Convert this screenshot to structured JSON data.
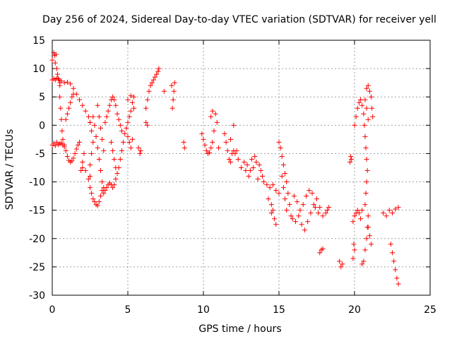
{
  "chart_data": {
    "type": "scatter",
    "title": "Day 256 of 2024, Sidereal Day-to-day VTEC variation (SDTVAR) for receiver yell",
    "xlabel": "GPS time / hours",
    "ylabel": "SDTVAR / TECUs",
    "xlim": [
      0,
      25
    ],
    "ylim": [
      -30,
      15
    ],
    "xticks": [
      "0",
      "5",
      "10",
      "15",
      "20",
      "25"
    ],
    "yticks": [
      "15",
      "10",
      "5",
      "0",
      "-5",
      "-10",
      "-15",
      "-20",
      "-25",
      "-30"
    ],
    "grid": true,
    "marker": "+",
    "color": "#ff0000",
    "series": [
      {
        "name": "SDTVAR",
        "points": [
          [
            0.0,
            11.5
          ],
          [
            0.1,
            12.8
          ],
          [
            0.15,
            12.3
          ],
          [
            0.2,
            11.0
          ],
          [
            0.25,
            12.5
          ],
          [
            0.3,
            10.0
          ],
          [
            0.35,
            9.0
          ],
          [
            0.4,
            8.2
          ],
          [
            0.5,
            7.5
          ],
          [
            0.0,
            8.0
          ],
          [
            0.1,
            8.2
          ],
          [
            0.2,
            8.0
          ],
          [
            0.3,
            8.3
          ],
          [
            0.45,
            8.0
          ],
          [
            0.6,
            7.8
          ],
          [
            0.8,
            7.5
          ],
          [
            1.0,
            7.6
          ],
          [
            1.2,
            7.3
          ],
          [
            1.4,
            6.5
          ],
          [
            1.6,
            5.5
          ],
          [
            1.8,
            4.5
          ],
          [
            2.0,
            3.5
          ],
          [
            2.2,
            2.5
          ],
          [
            2.4,
            1.5
          ],
          [
            2.5,
            0.5
          ],
          [
            0.0,
            -3.5
          ],
          [
            0.1,
            -3.2
          ],
          [
            0.2,
            -3.6
          ],
          [
            0.3,
            -3.0
          ],
          [
            0.4,
            -3.4
          ],
          [
            0.5,
            -3.3
          ],
          [
            0.6,
            -3.1
          ],
          [
            0.7,
            -3.5
          ],
          [
            0.8,
            -3.8
          ],
          [
            0.5,
            7.0
          ],
          [
            0.5,
            5.0
          ],
          [
            0.55,
            3.0
          ],
          [
            0.6,
            1.0
          ],
          [
            0.65,
            -1.0
          ],
          [
            0.7,
            -2.5
          ],
          [
            0.8,
            -3.5
          ],
          [
            0.9,
            -4.5
          ],
          [
            1.0,
            -5.5
          ],
          [
            1.1,
            -6.2
          ],
          [
            1.2,
            -6.5
          ],
          [
            1.3,
            -6.3
          ],
          [
            1.4,
            -5.8
          ],
          [
            1.5,
            -5.0
          ],
          [
            1.6,
            -4.2
          ],
          [
            1.7,
            -3.5
          ],
          [
            1.8,
            -3.0
          ],
          [
            0.9,
            1.0
          ],
          [
            1.0,
            2.0
          ],
          [
            1.1,
            3.0
          ],
          [
            1.2,
            4.0
          ],
          [
            1.3,
            5.0
          ],
          [
            1.4,
            5.5
          ],
          [
            1.9,
            -8.0
          ],
          [
            2.0,
            -6.5
          ],
          [
            2.1,
            -5.0
          ],
          [
            2.0,
            -7.5
          ],
          [
            2.2,
            -8.0
          ],
          [
            2.4,
            -9.5
          ],
          [
            2.5,
            -11.0
          ],
          [
            2.6,
            -12.0
          ],
          [
            2.7,
            -13.0
          ],
          [
            2.8,
            -13.5
          ],
          [
            2.9,
            -14.0
          ],
          [
            3.0,
            -14.2
          ],
          [
            3.1,
            -13.5
          ],
          [
            3.2,
            -12.5
          ],
          [
            3.3,
            -11.5
          ],
          [
            2.5,
            -9.0
          ],
          [
            2.5,
            -7.0
          ],
          [
            2.6,
            -5.0
          ],
          [
            2.7,
            -3.0
          ],
          [
            2.6,
            -1.0
          ],
          [
            2.5,
            0.5
          ],
          [
            2.7,
            1.5
          ],
          [
            2.8,
            0.0
          ],
          [
            2.9,
            -2.0
          ],
          [
            3.0,
            -4.0
          ],
          [
            3.1,
            -6.0
          ],
          [
            3.2,
            -8.0
          ],
          [
            3.3,
            -10.0
          ],
          [
            3.4,
            -11.0
          ],
          [
            3.0,
            3.5
          ],
          [
            3.1,
            1.5
          ],
          [
            3.2,
            -0.5
          ],
          [
            3.3,
            -2.5
          ],
          [
            3.4,
            -4.5
          ],
          [
            3.4,
            -12.0
          ],
          [
            3.5,
            -11.5
          ],
          [
            3.6,
            -11.0
          ],
          [
            3.7,
            -10.5
          ],
          [
            3.8,
            -10.2
          ],
          [
            3.9,
            -10.5
          ],
          [
            4.0,
            -11.0
          ],
          [
            4.1,
            -10.5
          ],
          [
            4.2,
            -9.5
          ],
          [
            4.3,
            -8.5
          ],
          [
            3.5,
            0.5
          ],
          [
            3.6,
            1.5
          ],
          [
            3.7,
            2.5
          ],
          [
            3.8,
            3.5
          ],
          [
            3.9,
            4.5
          ],
          [
            4.0,
            5.0
          ],
          [
            4.1,
            4.5
          ],
          [
            4.2,
            3.5
          ],
          [
            4.3,
            2.0
          ],
          [
            4.4,
            1.0
          ],
          [
            4.5,
            0.0
          ],
          [
            4.6,
            -1.0
          ],
          [
            3.9,
            -3.0
          ],
          [
            4.0,
            -4.5
          ],
          [
            4.1,
            -6.0
          ],
          [
            4.2,
            -7.5
          ],
          [
            4.4,
            -7.5
          ],
          [
            4.5,
            -6.0
          ],
          [
            4.6,
            -4.5
          ],
          [
            4.7,
            -3.0
          ],
          [
            4.8,
            -1.5
          ],
          [
            4.9,
            -0.5
          ],
          [
            5.0,
            0.5
          ],
          [
            5.1,
            1.5
          ],
          [
            5.2,
            2.5
          ],
          [
            5.3,
            4.0
          ],
          [
            5.4,
            5.0
          ],
          [
            5.0,
            -2.0
          ],
          [
            5.1,
            -3.0
          ],
          [
            5.2,
            -4.0
          ],
          [
            5.3,
            -2.5
          ],
          [
            5.0,
            4.5
          ],
          [
            5.2,
            5.2
          ],
          [
            5.4,
            3.0
          ],
          [
            5.7,
            -4.0
          ],
          [
            5.8,
            -5.0
          ],
          [
            5.85,
            -4.5
          ],
          [
            6.2,
            0.5
          ],
          [
            6.3,
            0.0
          ],
          [
            6.2,
            3.0
          ],
          [
            6.3,
            4.5
          ],
          [
            6.4,
            6.0
          ],
          [
            6.5,
            7.0
          ],
          [
            6.6,
            7.5
          ],
          [
            6.7,
            8.0
          ],
          [
            6.8,
            8.5
          ],
          [
            6.9,
            9.0
          ],
          [
            7.0,
            9.5
          ],
          [
            7.05,
            10.0
          ],
          [
            7.4,
            6.0
          ],
          [
            7.95,
            3.0
          ],
          [
            8.0,
            4.5
          ],
          [
            8.05,
            6.0
          ],
          [
            8.1,
            7.5
          ],
          [
            7.9,
            7.0
          ],
          [
            8.7,
            -3.0
          ],
          [
            8.75,
            -4.0
          ],
          [
            9.9,
            -1.5
          ],
          [
            10.0,
            -2.5
          ],
          [
            10.1,
            -3.5
          ],
          [
            10.2,
            -4.5
          ],
          [
            10.3,
            -5.0
          ],
          [
            10.4,
            -4.8
          ],
          [
            10.5,
            -4.0
          ],
          [
            10.6,
            -3.0
          ],
          [
            10.5,
            1.5
          ],
          [
            10.6,
            2.5
          ],
          [
            10.8,
            2.0
          ],
          [
            10.9,
            0.5
          ],
          [
            10.7,
            -1.0
          ],
          [
            11.0,
            -4.0
          ],
          [
            11.4,
            -1.5
          ],
          [
            11.5,
            -3.0
          ],
          [
            11.6,
            -4.5
          ],
          [
            11.7,
            -6.0
          ],
          [
            11.8,
            -6.5
          ],
          [
            11.9,
            -5.0
          ],
          [
            12.0,
            -4.5
          ],
          [
            12.1,
            -5.0
          ],
          [
            12.2,
            -4.5
          ],
          [
            11.8,
            -2.5
          ],
          [
            12.0,
            0.0
          ],
          [
            12.3,
            -6.0
          ],
          [
            12.5,
            -7.5
          ],
          [
            12.7,
            -6.5
          ],
          [
            12.9,
            -7.0
          ],
          [
            13.1,
            -8.0
          ],
          [
            13.3,
            -7.5
          ],
          [
            13.5,
            -6.5
          ],
          [
            13.7,
            -7.0
          ],
          [
            13.9,
            -9.0
          ],
          [
            14.0,
            -10.0
          ],
          [
            14.2,
            -10.5
          ],
          [
            14.4,
            -11.0
          ],
          [
            14.6,
            -10.5
          ],
          [
            14.8,
            -11.5
          ],
          [
            15.0,
            -12.0
          ],
          [
            12.8,
            -8.0
          ],
          [
            13.0,
            -9.0
          ],
          [
            13.2,
            -6.0
          ],
          [
            13.4,
            -5.5
          ],
          [
            13.6,
            -9.5
          ],
          [
            13.8,
            -8.0
          ],
          [
            14.3,
            -13.0
          ],
          [
            14.5,
            -14.0
          ],
          [
            14.6,
            -15.0
          ],
          [
            14.7,
            -16.5
          ],
          [
            14.8,
            -17.5
          ],
          [
            14.5,
            -15.5
          ],
          [
            15.0,
            -3.0
          ],
          [
            15.1,
            -4.0
          ],
          [
            15.2,
            -5.5
          ],
          [
            15.3,
            -7.0
          ],
          [
            15.4,
            -8.5
          ],
          [
            15.5,
            -10.0
          ],
          [
            15.6,
            -12.0
          ],
          [
            15.7,
            -14.0
          ],
          [
            15.8,
            -16.0
          ],
          [
            15.2,
            -9.0
          ],
          [
            15.3,
            -11.0
          ],
          [
            15.4,
            -13.0
          ],
          [
            15.5,
            -15.0
          ],
          [
            15.9,
            -16.5
          ],
          [
            16.1,
            -17.0
          ],
          [
            16.3,
            -16.0
          ],
          [
            16.5,
            -17.5
          ],
          [
            16.7,
            -18.5
          ],
          [
            16.9,
            -17.0
          ],
          [
            17.1,
            -15.5
          ],
          [
            17.3,
            -14.0
          ],
          [
            17.5,
            -13.0
          ],
          [
            17.7,
            -14.5
          ],
          [
            17.9,
            -16.0
          ],
          [
            16.0,
            -12.5
          ],
          [
            16.2,
            -13.5
          ],
          [
            16.4,
            -15.0
          ],
          [
            16.6,
            -14.0
          ],
          [
            16.8,
            -12.5
          ],
          [
            17.0,
            -11.5
          ],
          [
            17.2,
            -12.0
          ],
          [
            17.4,
            -14.5
          ],
          [
            17.6,
            -15.5
          ],
          [
            18.1,
            -15.5
          ],
          [
            18.2,
            -15.0
          ],
          [
            18.3,
            -14.5
          ],
          [
            17.7,
            -22.5
          ],
          [
            17.8,
            -22.0
          ],
          [
            17.9,
            -21.8
          ],
          [
            19.0,
            -24.0
          ],
          [
            19.1,
            -25.0
          ],
          [
            19.2,
            -24.5
          ],
          [
            19.7,
            -6.5
          ],
          [
            19.8,
            -6.0
          ],
          [
            19.75,
            -5.5
          ],
          [
            19.9,
            -23.5
          ],
          [
            20.0,
            -22.0
          ],
          [
            19.95,
            -21.0
          ],
          [
            19.9,
            -17.0
          ],
          [
            20.0,
            -16.0
          ],
          [
            20.1,
            -15.5
          ],
          [
            20.2,
            -15.0
          ],
          [
            20.3,
            -15.5
          ],
          [
            20.4,
            -16.5
          ],
          [
            20.5,
            -15.0
          ],
          [
            20.0,
            0.0
          ],
          [
            20.1,
            1.5
          ],
          [
            20.2,
            3.0
          ],
          [
            20.3,
            4.0
          ],
          [
            20.4,
            4.5
          ],
          [
            20.5,
            3.5
          ],
          [
            20.6,
            2.0
          ],
          [
            20.65,
            0.0
          ],
          [
            20.7,
            -2.0
          ],
          [
            20.75,
            -4.0
          ],
          [
            20.8,
            -6.0
          ],
          [
            20.85,
            -8.0
          ],
          [
            20.8,
            -10.0
          ],
          [
            20.75,
            -12.0
          ],
          [
            20.7,
            -14.0
          ],
          [
            20.5,
            -24.5
          ],
          [
            20.6,
            -24.0
          ],
          [
            20.7,
            -22.0
          ],
          [
            20.8,
            -20.0
          ],
          [
            20.85,
            -18.0
          ],
          [
            20.9,
            -16.0
          ],
          [
            20.8,
            6.5
          ],
          [
            20.9,
            7.0
          ],
          [
            21.0,
            6.0
          ],
          [
            21.1,
            5.0
          ],
          [
            21.15,
            3.0
          ],
          [
            21.2,
            1.5
          ],
          [
            20.7,
            4.5
          ],
          [
            20.8,
            3.0
          ],
          [
            20.9,
            1.0
          ],
          [
            20.9,
            -18.0
          ],
          [
            21.0,
            -19.5
          ],
          [
            21.1,
            -21.0
          ],
          [
            21.9,
            -15.5
          ],
          [
            22.1,
            -16.0
          ],
          [
            22.3,
            -15.0
          ],
          [
            22.5,
            -15.5
          ],
          [
            22.7,
            -14.8
          ],
          [
            22.9,
            -14.5
          ],
          [
            22.4,
            -21.0
          ],
          [
            22.5,
            -22.5
          ],
          [
            22.6,
            -24.0
          ],
          [
            22.7,
            -25.5
          ],
          [
            22.8,
            -27.0
          ],
          [
            22.9,
            -28.0
          ]
        ]
      }
    ]
  }
}
